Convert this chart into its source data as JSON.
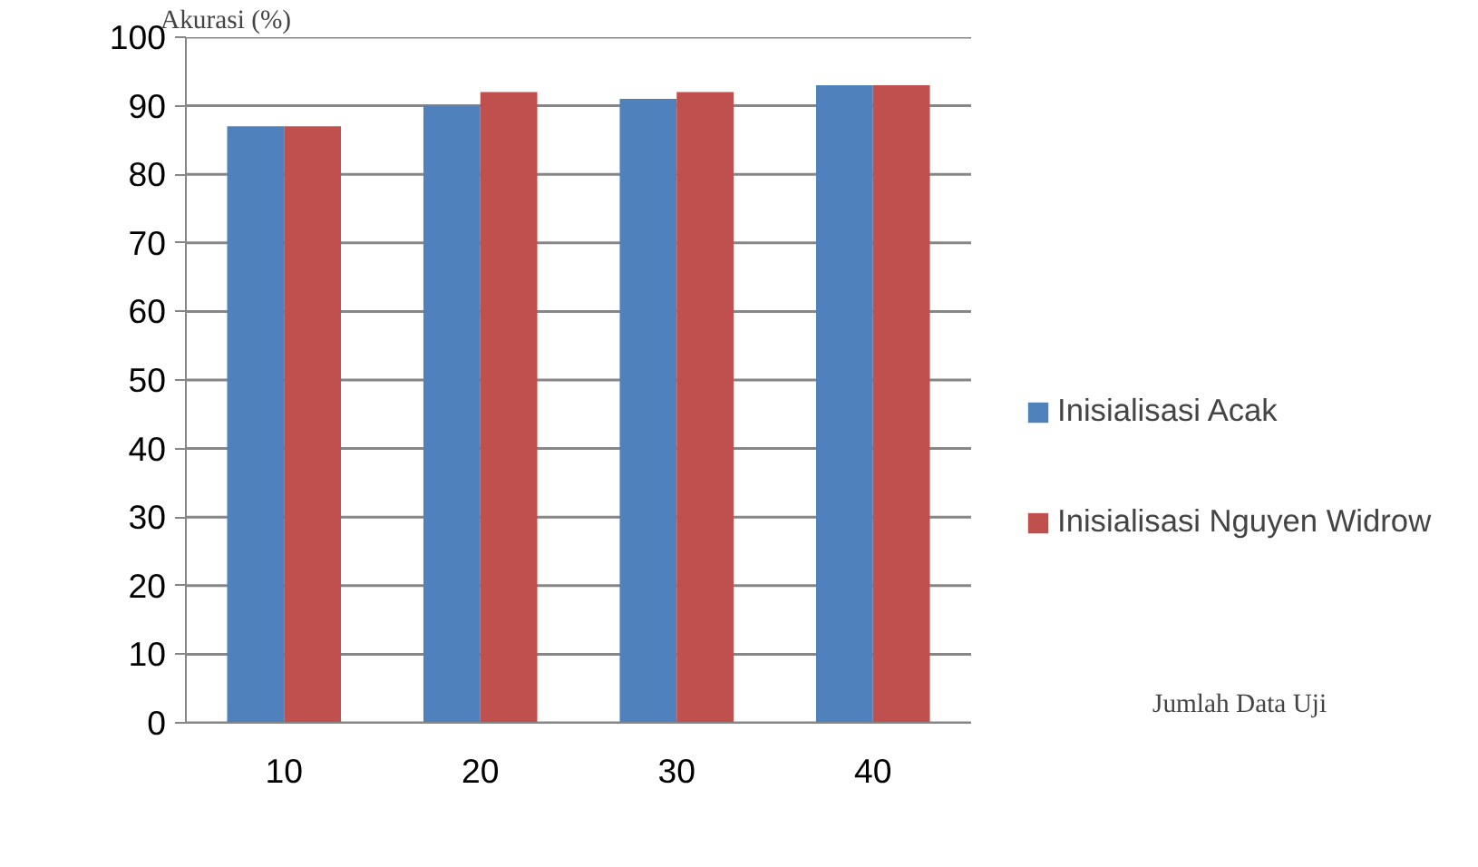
{
  "chart_data": {
    "type": "bar",
    "annotations": [
      "Jumlah Data Uji"
    ],
    "ylabel": "Akurasi (%)",
    "categories": [
      "10",
      "20",
      "30",
      "40"
    ],
    "series": [
      {
        "name": "Inisialisasi Acak",
        "color": "#4f81bd",
        "values": [
          87,
          90,
          91,
          93
        ]
      },
      {
        "name": "Inisialisasi Nguyen Widrow",
        "color": "#c0504d",
        "values": [
          87,
          92,
          92,
          93
        ]
      }
    ],
    "ylim": [
      0,
      100
    ],
    "yticks": [
      0,
      10,
      20,
      30,
      40,
      50,
      60,
      70,
      80,
      90,
      100
    ],
    "grid": "y",
    "legend": "right"
  }
}
